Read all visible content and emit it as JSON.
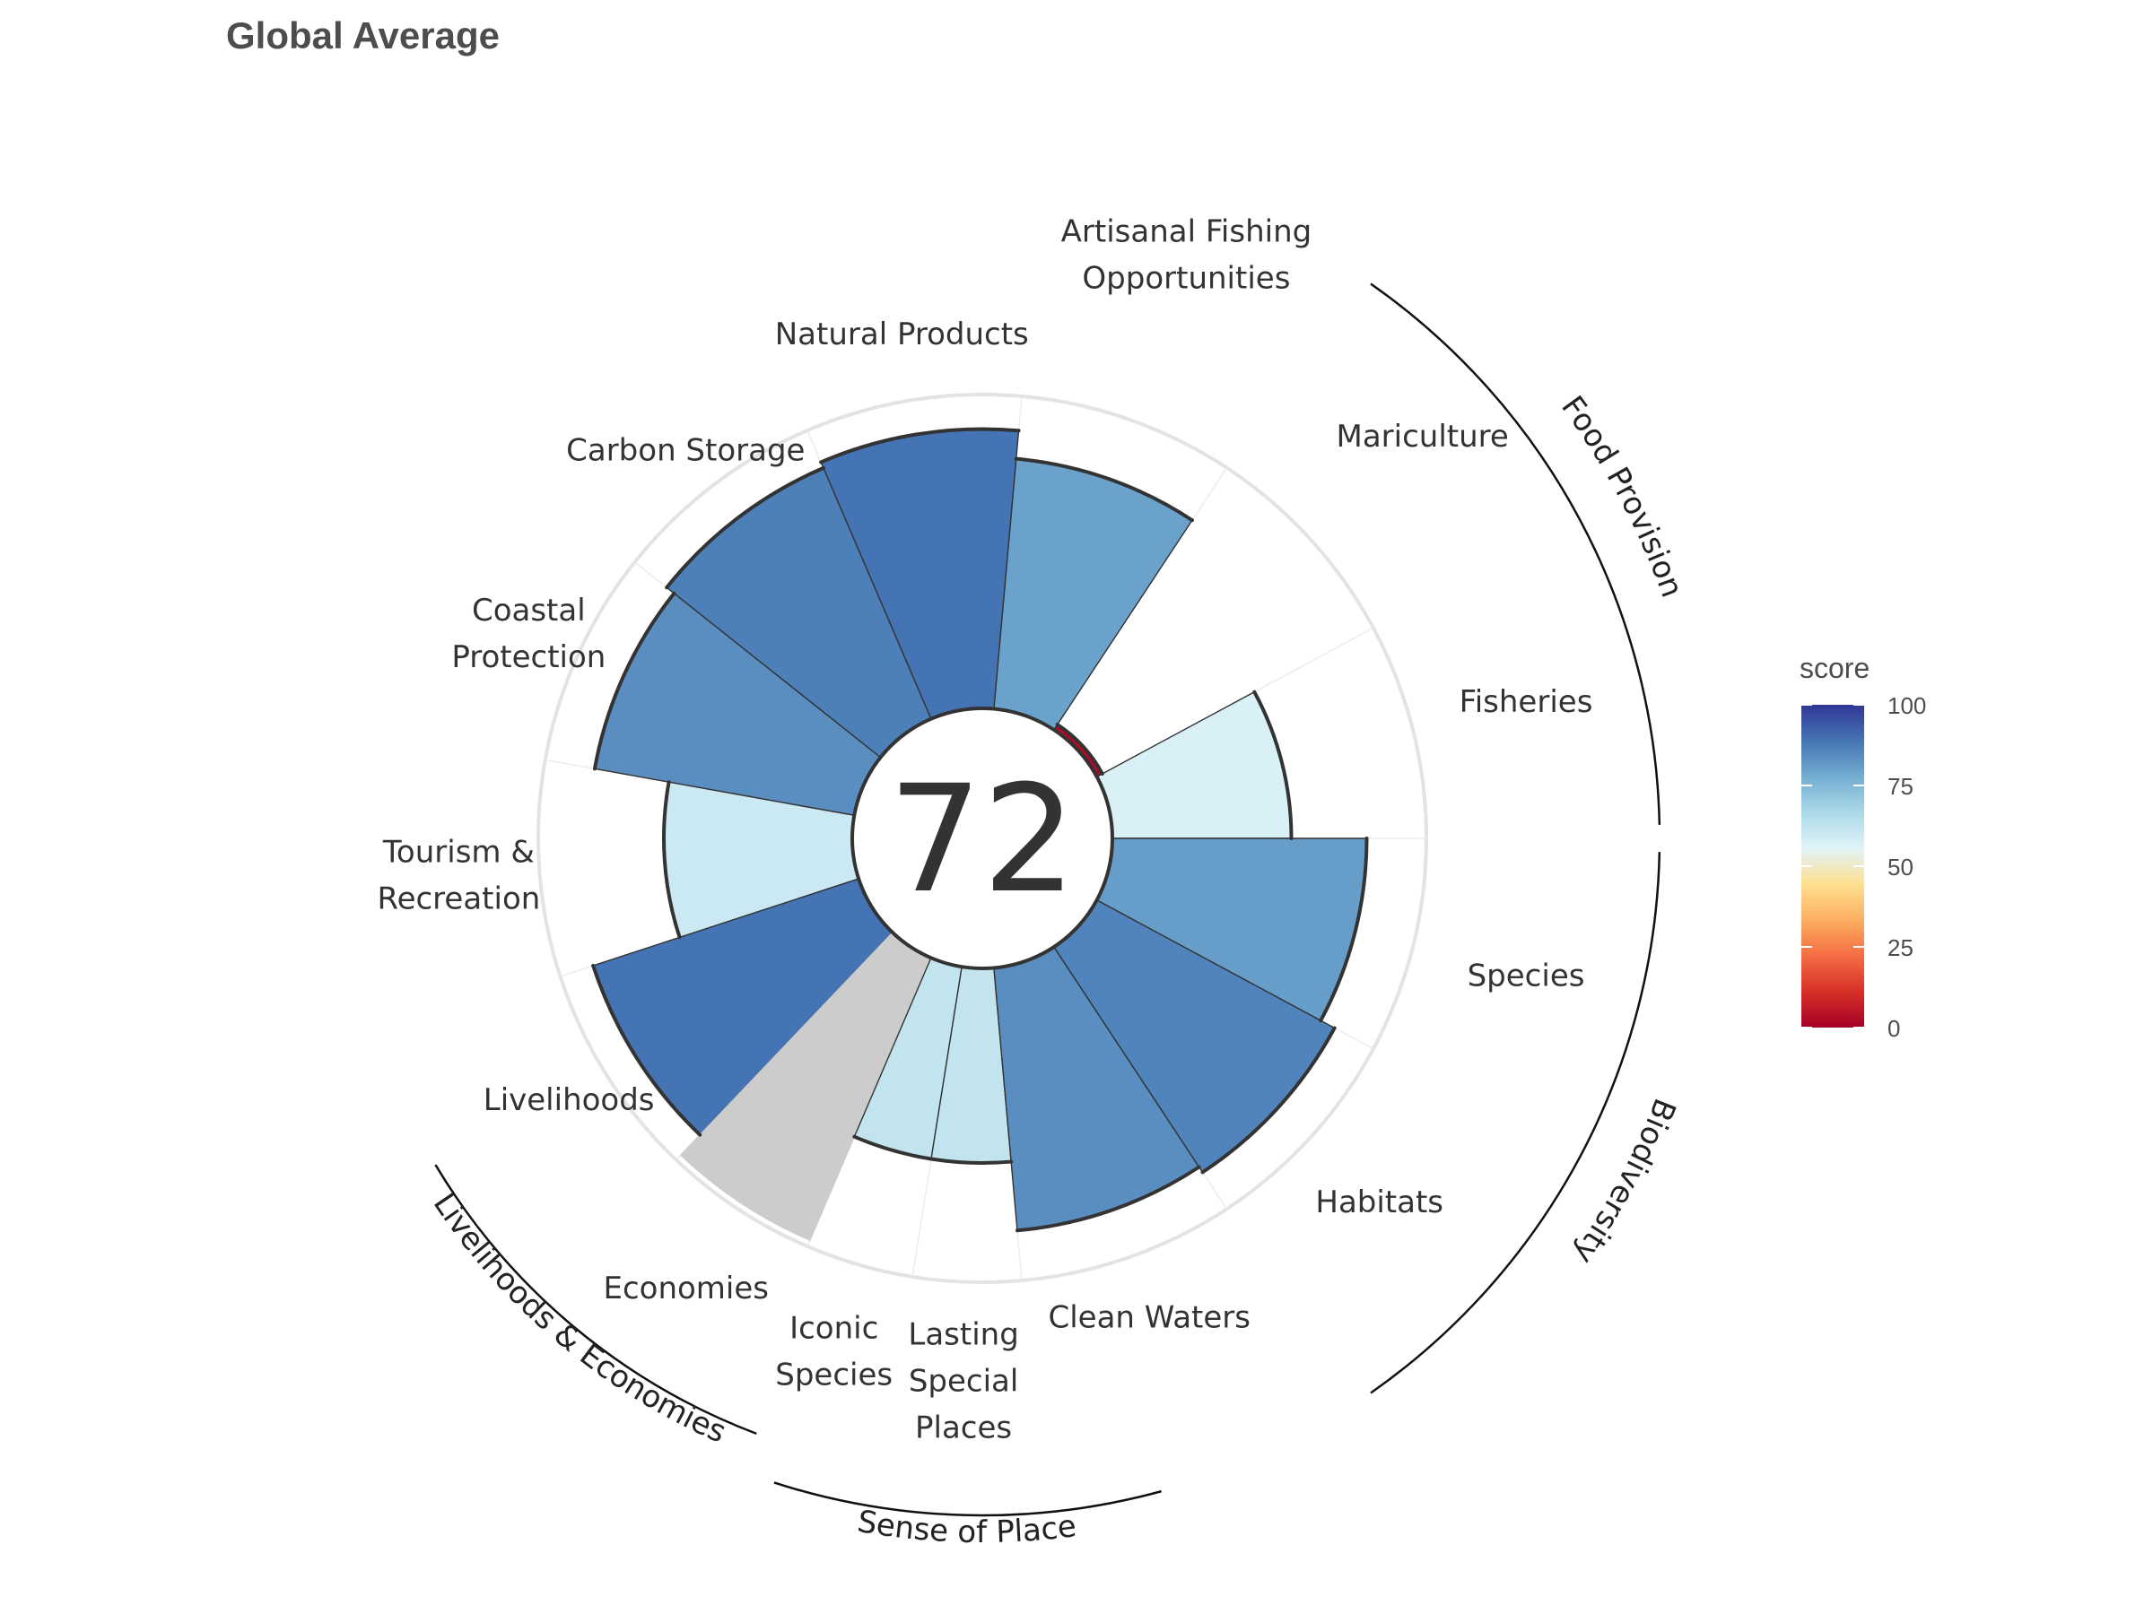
{
  "chart_data": {
    "type": "polar-bar",
    "title": "Global Average",
    "center_value": "72",
    "scale_max": 100,
    "goals": [
      {
        "name": "Fisheries",
        "label_lines": [
          "Fisheries"
        ],
        "score": 57
      },
      {
        "name": "Mariculture",
        "label_lines": [
          "Mariculture"
        ],
        "score": 2
      },
      {
        "name": "Artisanal Fishing Opportunities",
        "label_lines": [
          "Artisanal Fishing",
          "Opportunities"
        ],
        "score": 80
      },
      {
        "name": "Natural Products",
        "label_lines": [
          "Natural Products"
        ],
        "score": 89
      },
      {
        "name": "Carbon Storage",
        "label_lines": [
          "Carbon Storage"
        ],
        "score": 87
      },
      {
        "name": "Coastal Protection",
        "label_lines": [
          "Coastal",
          "Protection"
        ],
        "score": 84
      },
      {
        "name": "Tourism & Recreation",
        "label_lines": [
          "Tourism &",
          "Recreation"
        ],
        "score": 60
      },
      {
        "name": "Livelihoods",
        "label_lines": [
          "Livelihoods"
        ],
        "score": 89
      },
      {
        "name": "Economies",
        "label_lines": [
          "Economies"
        ],
        "score": null,
        "weight": 0.72
      },
      {
        "name": "Iconic Species",
        "label_lines": [
          "Iconic",
          "Species"
        ],
        "score": 62,
        "weight": 0.5
      },
      {
        "name": "Lasting Special Places",
        "label_lines": [
          "Lasting",
          "Special",
          "Places"
        ],
        "score": 62,
        "weight": 0.5
      },
      {
        "name": "Clean Waters",
        "label_lines": [
          "Clean Waters"
        ],
        "score": 84
      },
      {
        "name": "Habitats",
        "label_lines": [
          "Habitats"
        ],
        "score": 86
      },
      {
        "name": "Species",
        "label_lines": [
          "Species"
        ],
        "score": 81
      }
    ],
    "groups": [
      {
        "name": "Food Provision"
      },
      {
        "name": "Biodiversity"
      },
      {
        "name": "Sense of Place"
      },
      {
        "name": "Livelihoods & Economies"
      }
    ],
    "legend": {
      "title": "score",
      "ticks": [
        "100",
        "75",
        "50",
        "25",
        "0"
      ],
      "colors": [
        "#a50026",
        "#d73027",
        "#f46d43",
        "#fdae61",
        "#fee090",
        "#e0f3f8",
        "#abd9e9",
        "#74add1",
        "#4575b4",
        "#313695"
      ]
    },
    "missing_color": "#cccccc"
  }
}
